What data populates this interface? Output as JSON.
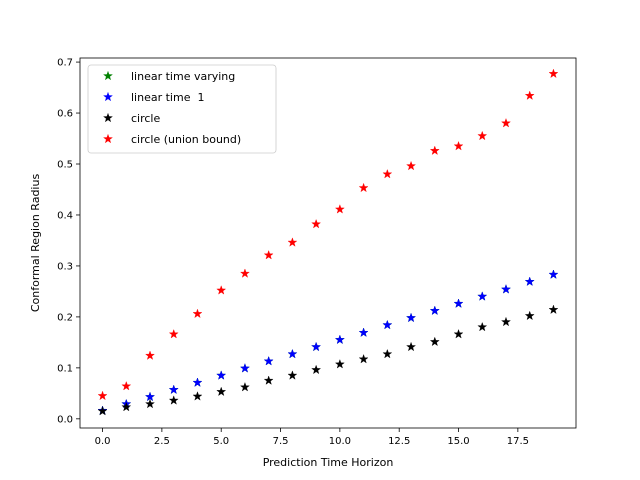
{
  "chart_data": {
    "type": "scatter",
    "title": "",
    "xlabel": "Prediction Time Horizon",
    "ylabel": "Conformal Region Radius",
    "xlim": [
      -0.95,
      19.95
    ],
    "ylim": [
      -0.018,
      0.708
    ],
    "xticks": [
      0.0,
      2.5,
      5.0,
      7.5,
      10.0,
      12.5,
      15.0,
      17.5
    ],
    "xtick_labels": [
      "0.0",
      "2.5",
      "5.0",
      "7.5",
      "10.0",
      "12.5",
      "15.0",
      "17.5"
    ],
    "yticks": [
      0.0,
      0.1,
      0.2,
      0.3,
      0.4,
      0.5,
      0.6,
      0.7
    ],
    "ytick_labels": [
      "0.0",
      "0.1",
      "0.2",
      "0.3",
      "0.4",
      "0.5",
      "0.6",
      "0.7"
    ],
    "grid": false,
    "legend_position": "top-left",
    "marker": "star",
    "x": [
      0,
      1,
      2,
      3,
      4,
      5,
      6,
      7,
      8,
      9,
      10,
      11,
      12,
      13,
      14,
      15,
      16,
      17,
      18,
      19
    ],
    "series": [
      {
        "name": "linear time varying",
        "color": "#008000",
        "values": [
          0.016,
          0.029,
          0.043,
          0.057,
          0.071,
          0.085,
          0.099,
          0.113,
          0.127,
          0.141,
          0.155,
          0.169,
          0.184,
          0.198,
          0.212,
          0.226,
          0.24,
          0.254,
          0.269,
          0.283
        ]
      },
      {
        "name": "linear time  1",
        "color": "#0000ff",
        "values": [
          0.016,
          0.029,
          0.043,
          0.057,
          0.071,
          0.085,
          0.099,
          0.113,
          0.127,
          0.141,
          0.155,
          0.169,
          0.184,
          0.198,
          0.212,
          0.226,
          0.24,
          0.254,
          0.269,
          0.283
        ]
      },
      {
        "name": "circle",
        "color": "#000000",
        "values": [
          0.015,
          0.023,
          0.029,
          0.036,
          0.044,
          0.053,
          0.062,
          0.075,
          0.085,
          0.096,
          0.107,
          0.117,
          0.127,
          0.141,
          0.151,
          0.166,
          0.18,
          0.19,
          0.202,
          0.214
        ]
      },
      {
        "name": "circle (union bound)",
        "color": "#ff0000",
        "values": [
          0.045,
          0.064,
          0.124,
          0.166,
          0.206,
          0.252,
          0.285,
          0.321,
          0.346,
          0.382,
          0.411,
          0.453,
          0.48,
          0.496,
          0.526,
          0.535,
          0.555,
          0.58,
          0.634,
          0.677
        ]
      }
    ]
  }
}
